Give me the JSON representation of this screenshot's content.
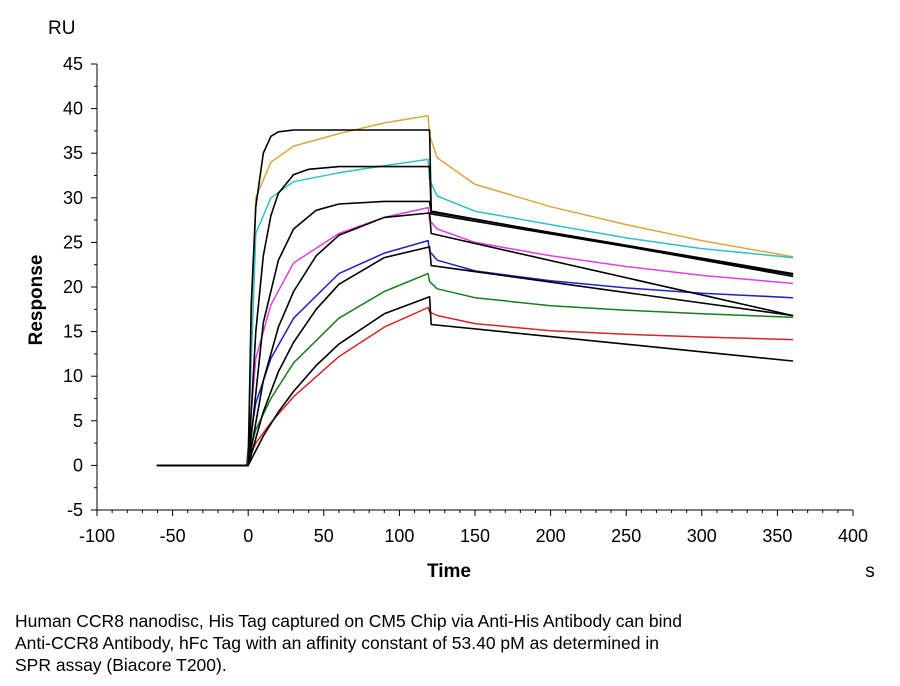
{
  "chart_data": {
    "type": "line",
    "xlabel": "Time",
    "xunit": "s",
    "ylabel": "Response",
    "yunit": "RU",
    "xlim": [
      -100,
      400
    ],
    "ylim": [
      -5,
      45
    ],
    "xticks": [
      -100,
      -50,
      0,
      50,
      100,
      150,
      200,
      250,
      300,
      350,
      400
    ],
    "yticks": [
      -5,
      0,
      5,
      10,
      15,
      20,
      25,
      30,
      35,
      40,
      45
    ],
    "grid": false,
    "legend": "none",
    "series": [
      {
        "color": "#dea53e",
        "x": [
          -60,
          -1,
          0,
          5,
          15,
          30,
          60,
          90,
          119,
          120,
          125,
          150,
          200,
          250,
          300,
          360
        ],
        "y": [
          0,
          0,
          2,
          30,
          34,
          35.8,
          37.2,
          38.4,
          39.2,
          37,
          34.5,
          31.5,
          29,
          27,
          25.2,
          23.4
        ]
      },
      {
        "color": "#2fc0cc",
        "x": [
          -60,
          -1,
          0,
          5,
          15,
          30,
          60,
          90,
          119,
          120,
          125,
          150,
          200,
          250,
          300,
          360
        ],
        "y": [
          0,
          0,
          2,
          26,
          30,
          31.8,
          32.8,
          33.6,
          34.3,
          32,
          30.2,
          28.5,
          27,
          25.5,
          24.3,
          23.3
        ]
      },
      {
        "color": "#e23fe0",
        "x": [
          -60,
          -1,
          0,
          5,
          15,
          30,
          60,
          90,
          119,
          120,
          125,
          150,
          200,
          250,
          300,
          360
        ],
        "y": [
          0,
          0,
          2,
          12,
          18,
          22.7,
          26,
          27.8,
          28.9,
          27.5,
          26.5,
          25,
          23.5,
          22.3,
          21.3,
          20.4
        ]
      },
      {
        "color": "#1c23c4",
        "x": [
          -60,
          -1,
          0,
          5,
          15,
          30,
          60,
          90,
          119,
          120,
          125,
          150,
          200,
          250,
          300,
          360
        ],
        "y": [
          0,
          0,
          1.5,
          7,
          12,
          16.5,
          21.5,
          23.8,
          25.2,
          24,
          23,
          21.8,
          20.7,
          19.9,
          19.3,
          18.8
        ]
      },
      {
        "color": "#1b7c1b",
        "x": [
          -60,
          -1,
          0,
          5,
          15,
          30,
          60,
          90,
          119,
          120,
          125,
          150,
          200,
          250,
          300,
          360
        ],
        "y": [
          0,
          0,
          1,
          4,
          7.5,
          11.5,
          16.5,
          19.5,
          21.5,
          20.6,
          19.8,
          18.8,
          17.9,
          17.4,
          17,
          16.6
        ]
      },
      {
        "color": "#d62525",
        "x": [
          -60,
          -1,
          0,
          5,
          15,
          30,
          60,
          90,
          119,
          120,
          125,
          150,
          200,
          250,
          300,
          360
        ],
        "y": [
          0,
          0,
          0.5,
          2.5,
          4.8,
          7.7,
          12.2,
          15.5,
          17.7,
          17.2,
          16.8,
          15.9,
          15.1,
          14.7,
          14.4,
          14.1
        ]
      },
      {
        "color": "#000000",
        "x": [
          -60,
          -1,
          0,
          2,
          5,
          10,
          15,
          20,
          30,
          60,
          90,
          120,
          121,
          360
        ],
        "y": [
          0,
          0,
          0,
          18,
          29,
          35,
          36.9,
          37.4,
          37.6,
          37.6,
          37.6,
          37.6,
          28.5,
          21.2
        ]
      },
      {
        "color": "#000000",
        "x": [
          -60,
          -1,
          0,
          5,
          10,
          15,
          20,
          30,
          40,
          60,
          90,
          120,
          121,
          360
        ],
        "y": [
          0,
          0,
          0,
          15,
          23.5,
          28,
          30.5,
          32.6,
          33.2,
          33.5,
          33.5,
          33.5,
          28.4,
          21.5
        ]
      },
      {
        "color": "#000000",
        "x": [
          -60,
          -1,
          0,
          10,
          20,
          30,
          45,
          60,
          90,
          120,
          121,
          360
        ],
        "y": [
          0,
          0,
          0,
          16,
          23,
          26.5,
          28.6,
          29.3,
          29.6,
          29.6,
          28.2,
          21.4
        ]
      },
      {
        "color": "#000000",
        "x": [
          -60,
          -1,
          0,
          10,
          20,
          30,
          45,
          60,
          90,
          120,
          121,
          360
        ],
        "y": [
          0,
          0,
          0,
          9.5,
          15.5,
          19.5,
          23.5,
          25.8,
          27.8,
          28.3,
          26,
          16.8
        ]
      },
      {
        "color": "#000000",
        "x": [
          -60,
          -1,
          0,
          10,
          20,
          30,
          45,
          60,
          90,
          120,
          121,
          360
        ],
        "y": [
          0,
          0,
          0,
          6,
          10.5,
          13.8,
          17.5,
          20.3,
          23.3,
          24.5,
          22.4,
          16.8
        ]
      },
      {
        "color": "#000000",
        "x": [
          -60,
          -1,
          0,
          10,
          20,
          30,
          45,
          60,
          90,
          120,
          121,
          360
        ],
        "y": [
          0,
          0,
          0,
          3.3,
          6,
          8.3,
          11.2,
          13.6,
          17,
          18.9,
          15.8,
          11.7
        ]
      }
    ]
  },
  "caption": {
    "line1": "Human CCR8 nanodisc, His Tag captured on CM5 Chip via Anti-His Antibody can bind",
    "line2": "Anti-CCR8 Antibody, hFc Tag with an affinity constant of 53.40 pM as determined in",
    "line3": "SPR assay (Biacore T200)."
  }
}
